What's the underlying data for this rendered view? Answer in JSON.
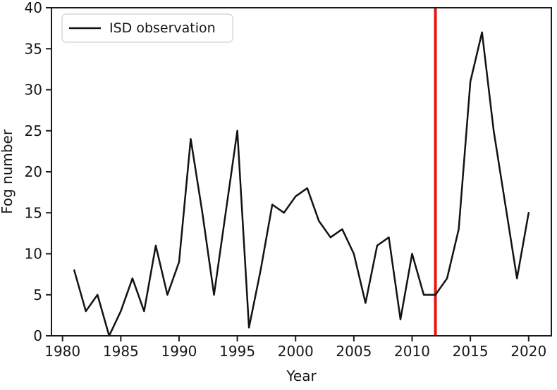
{
  "chart_data": {
    "type": "line",
    "title": "",
    "xlabel": "Year",
    "ylabel": "Fog number",
    "xlim": [
      1979.05,
      2021.95
    ],
    "ylim": [
      0,
      40
    ],
    "xticks": [
      1980,
      1985,
      1990,
      1995,
      2000,
      2005,
      2010,
      2015,
      2020
    ],
    "yticks": [
      0,
      5,
      10,
      15,
      20,
      25,
      30,
      35,
      40
    ],
    "grid": false,
    "legend_position": "upper-left",
    "series": [
      {
        "name": "ISD observation",
        "color": "#121212",
        "x": [
          1981,
          1982,
          1983,
          1984,
          1985,
          1986,
          1987,
          1988,
          1989,
          1990,
          1991,
          1992,
          1993,
          1994,
          1995,
          1996,
          1997,
          1998,
          1999,
          2000,
          2001,
          2002,
          2003,
          2004,
          2005,
          2006,
          2007,
          2008,
          2009,
          2010,
          2011,
          2012,
          2013,
          2014,
          2015,
          2016,
          2017,
          2018,
          2019,
          2020
        ],
        "values": [
          8,
          3,
          5,
          0,
          3,
          7,
          3,
          11,
          5,
          9,
          24,
          15,
          5,
          15,
          25,
          1,
          8,
          16,
          15,
          17,
          18,
          14,
          12,
          13,
          10,
          4,
          11,
          12,
          2,
          10,
          5,
          5,
          7,
          13,
          31,
          37,
          25,
          16,
          7,
          15
        ]
      }
    ],
    "annotations": [
      {
        "type": "vline",
        "x": 2012,
        "color": "#e8150d",
        "width": 4
      }
    ]
  },
  "colors": {
    "background": "#ffffff",
    "axis": "#1a1a1a",
    "text": "#161616",
    "line": "#121212",
    "vline": "#e8150d",
    "legend_border": "#d8d8d8",
    "legend_fill": "#ffffff"
  }
}
